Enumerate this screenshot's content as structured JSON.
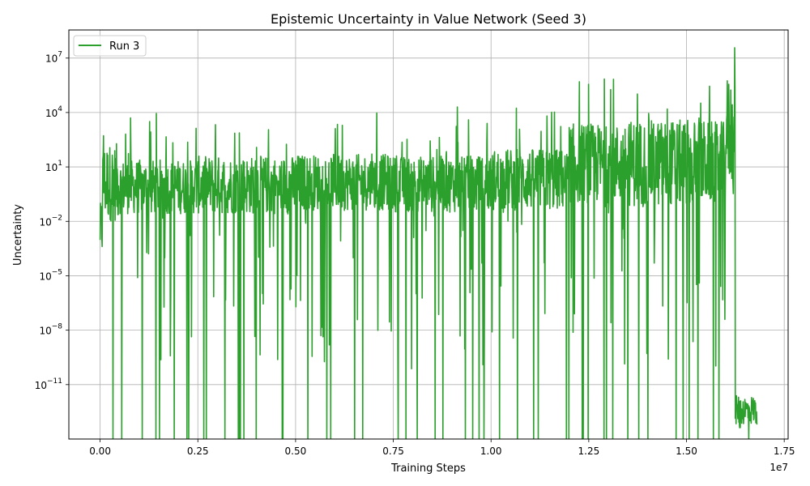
{
  "chart_data": {
    "type": "line",
    "title": "Epistemic Uncertainty in Value Network (Seed 3)",
    "xlabel": "Training Steps",
    "ylabel": "Uncertainty",
    "x_offset_label": "1e7",
    "xscale": "linear",
    "yscale": "log",
    "xlim": [
      -800000,
      17600000
    ],
    "ylim_exp": [
      -14,
      8.55
    ],
    "x_ticks": [
      {
        "value": 0,
        "label": "0.00"
      },
      {
        "value": 2500000,
        "label": "0.25"
      },
      {
        "value": 5000000,
        "label": "0.50"
      },
      {
        "value": 7500000,
        "label": "0.75"
      },
      {
        "value": 10000000,
        "label": "1.00"
      },
      {
        "value": 12500000,
        "label": "1.25"
      },
      {
        "value": 15000000,
        "label": "1.50"
      },
      {
        "value": 17500000,
        "label": "1.75"
      }
    ],
    "y_ticks": [
      {
        "exp": -11,
        "base": "10",
        "power": "−11"
      },
      {
        "exp": -8,
        "base": "10",
        "power": "−8"
      },
      {
        "exp": -5,
        "base": "10",
        "power": "−5"
      },
      {
        "exp": -2,
        "base": "10",
        "power": "−2"
      },
      {
        "exp": 1,
        "base": "10",
        "power": "1"
      },
      {
        "exp": 4,
        "base": "10",
        "power": "4"
      },
      {
        "exp": 7,
        "base": "10",
        "power": "7"
      }
    ],
    "grid": true,
    "legend_position": "upper-left",
    "series": [
      {
        "name": "Run 3",
        "color": "#2ca02c",
        "description": "dense noisy line; per-segment envelope of log10(Uncertainty)",
        "envelope": [
          {
            "x0": 0,
            "x1": 60000,
            "min": -11.2,
            "typ_lo": -4,
            "typ_hi": -0.8,
            "max": -1.0
          },
          {
            "x0": 60000,
            "x1": 500000,
            "min": -14,
            "typ_lo": -2,
            "typ_hi": 2.3,
            "max": 3.2
          },
          {
            "x0": 500000,
            "x1": 2500000,
            "min": -14,
            "typ_lo": -1.6,
            "typ_hi": 1.4,
            "max": 4.0
          },
          {
            "x0": 2500000,
            "x1": 5000000,
            "min": -14,
            "typ_lo": -1.6,
            "typ_hi": 1.6,
            "max": 4.3
          },
          {
            "x0": 5000000,
            "x1": 7500000,
            "min": -14,
            "typ_lo": -1.4,
            "typ_hi": 1.7,
            "max": 4.3
          },
          {
            "x0": 7500000,
            "x1": 10000000,
            "min": -14,
            "typ_lo": -1.5,
            "typ_hi": 1.6,
            "max": 4.6
          },
          {
            "x0": 10000000,
            "x1": 12000000,
            "min": -14,
            "typ_lo": -1.4,
            "typ_hi": 2.0,
            "max": 4.5
          },
          {
            "x0": 12000000,
            "x1": 13500000,
            "min": -14,
            "typ_lo": -1.0,
            "typ_hi": 3.4,
            "max": 5.9
          },
          {
            "x0": 13500000,
            "x1": 15500000,
            "min": -14,
            "typ_lo": -1.2,
            "typ_hi": 3.6,
            "max": 5.7
          },
          {
            "x0": 15500000,
            "x1": 16000000,
            "min": -14,
            "typ_lo": -1.0,
            "typ_hi": 3.5,
            "max": 5.5
          },
          {
            "x0": 16000000,
            "x1": 16250000,
            "min": -14,
            "typ_lo": 0.0,
            "typ_hi": 6.0,
            "max": 7.9
          },
          {
            "x0": 16250000,
            "x1": 16800000,
            "min": -14,
            "typ_lo": -13.2,
            "typ_hi": -11.6,
            "max": -11.1
          }
        ]
      }
    ]
  }
}
